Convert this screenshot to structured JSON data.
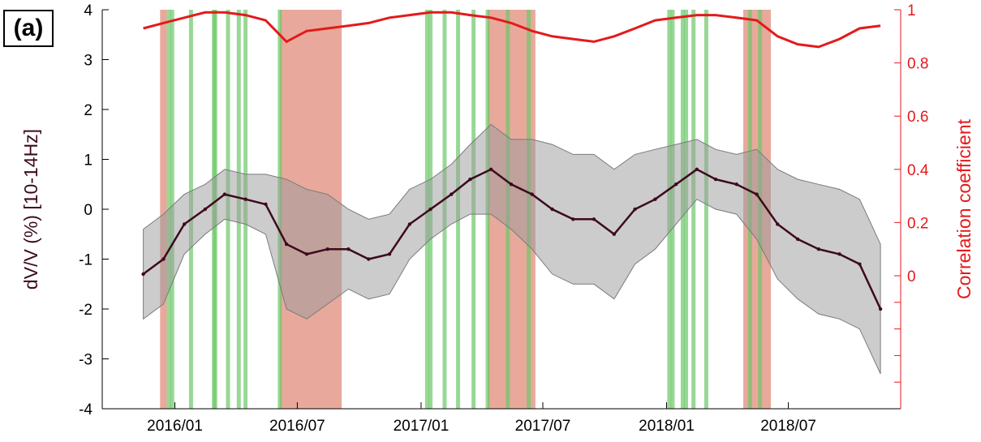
{
  "panel_label": "(a)",
  "chart_data": {
    "type": "line",
    "xlim": [
      "2015-09-15",
      "2018-12-15"
    ],
    "x_ticks": [
      "2016/01",
      "2016/07",
      "2017/01",
      "2017/07",
      "2018/01",
      "2018/07"
    ],
    "x_tick_dates": [
      "2016-01-01",
      "2016-07-01",
      "2017-01-01",
      "2017-07-01",
      "2018-01-01",
      "2018-07-01"
    ],
    "y_left": {
      "label": "dV/V (%) [10-14Hz]",
      "lim": [
        -4,
        4
      ],
      "ticks": [
        "-4",
        "-3",
        "-2",
        "-1",
        "0",
        "1",
        "2",
        "3",
        "4"
      ],
      "color": "#3d0a1e"
    },
    "y_right": {
      "label": "Correlation coefficient",
      "lim": [
        -0.5,
        1
      ],
      "ticks": [
        "0",
        "0.2",
        "0.4",
        "0.6",
        "0.8",
        "1"
      ],
      "color": "#e31a1c"
    },
    "shaded_red_periods": [
      [
        "2015-12-10",
        "2015-12-20"
      ],
      [
        "2016-06-05",
        "2016-09-05"
      ],
      [
        "2017-04-10",
        "2017-06-20"
      ],
      [
        "2018-04-25",
        "2018-06-05"
      ]
    ],
    "shaded_green_lines": [
      "2015-12-23",
      "2015-12-28",
      "2016-01-25",
      "2016-02-28",
      "2016-03-01",
      "2016-03-20",
      "2016-04-05",
      "2016-04-15",
      "2016-06-05",
      "2017-01-10",
      "2017-01-15",
      "2017-02-05",
      "2017-02-25",
      "2017-03-20",
      "2017-04-10",
      "2017-05-10",
      "2017-06-10",
      "2018-01-05",
      "2018-01-10",
      "2018-01-25",
      "2018-01-30",
      "2018-02-10",
      "2018-03-01",
      "2018-05-05",
      "2018-05-20"
    ],
    "series": [
      {
        "name": "",
        "axis": "left",
        "type": "line-with-band",
        "x": [
          "2015-11-15",
          "2015-12-15",
          "2016-01-15",
          "2016-02-15",
          "2016-03-15",
          "2016-04-15",
          "2016-05-15",
          "2016-06-15",
          "2016-07-15",
          "2016-08-15",
          "2016-09-15",
          "2016-10-15",
          "2016-11-15",
          "2016-12-15",
          "2017-01-15",
          "2017-02-15",
          "2017-03-15",
          "2017-04-15",
          "2017-05-15",
          "2017-06-15",
          "2017-07-15",
          "2017-08-15",
          "2017-09-15",
          "2017-10-15",
          "2017-11-15",
          "2017-12-15",
          "2018-01-15",
          "2018-02-15",
          "2018-03-15",
          "2018-04-15",
          "2018-05-15",
          "2018-06-15",
          "2018-07-15",
          "2018-08-15",
          "2018-09-15",
          "2018-10-15",
          "2018-11-15"
        ],
        "values": [
          -1.3,
          -1.0,
          -0.3,
          0.0,
          0.3,
          0.2,
          0.1,
          -0.7,
          -0.9,
          -0.8,
          -0.8,
          -1.0,
          -0.9,
          -0.3,
          0.0,
          0.3,
          0.6,
          0.8,
          0.5,
          0.3,
          0.0,
          -0.2,
          -0.2,
          -0.5,
          0.0,
          0.2,
          0.5,
          0.8,
          0.6,
          0.5,
          0.3,
          -0.3,
          -0.6,
          -0.8,
          -0.9,
          -1.1,
          -2.0
        ],
        "band_halfwidth": [
          0.9,
          0.9,
          0.6,
          0.5,
          0.5,
          0.5,
          0.6,
          1.3,
          1.3,
          1.1,
          0.8,
          0.8,
          0.8,
          0.7,
          0.6,
          0.6,
          0.7,
          0.9,
          0.9,
          1.1,
          1.3,
          1.3,
          1.3,
          1.3,
          1.1,
          1.0,
          0.8,
          0.6,
          0.6,
          0.6,
          0.9,
          1.1,
          1.2,
          1.3,
          1.3,
          1.3,
          1.3
        ]
      },
      {
        "name": "",
        "axis": "right",
        "type": "line",
        "x": [
          "2015-11-15",
          "2015-12-15",
          "2016-01-15",
          "2016-02-15",
          "2016-03-15",
          "2016-04-15",
          "2016-05-15",
          "2016-06-15",
          "2016-07-15",
          "2016-08-15",
          "2016-09-15",
          "2016-10-15",
          "2016-11-15",
          "2016-12-15",
          "2017-01-15",
          "2017-02-15",
          "2017-03-15",
          "2017-04-15",
          "2017-05-15",
          "2017-06-15",
          "2017-07-15",
          "2017-08-15",
          "2017-09-15",
          "2017-10-15",
          "2017-11-15",
          "2017-12-15",
          "2018-01-15",
          "2018-02-15",
          "2018-03-15",
          "2018-04-15",
          "2018-05-15",
          "2018-06-15",
          "2018-07-15",
          "2018-08-15",
          "2018-09-15",
          "2018-10-15",
          "2018-11-15"
        ],
        "values": [
          0.93,
          0.95,
          0.97,
          0.99,
          0.99,
          0.98,
          0.96,
          0.88,
          0.92,
          0.93,
          0.94,
          0.95,
          0.97,
          0.98,
          0.99,
          0.99,
          0.98,
          0.97,
          0.95,
          0.92,
          0.9,
          0.89,
          0.88,
          0.9,
          0.93,
          0.96,
          0.97,
          0.98,
          0.98,
          0.97,
          0.96,
          0.9,
          0.87,
          0.86,
          0.89,
          0.93,
          0.94
        ]
      }
    ],
    "legend": "none",
    "grid": false
  }
}
